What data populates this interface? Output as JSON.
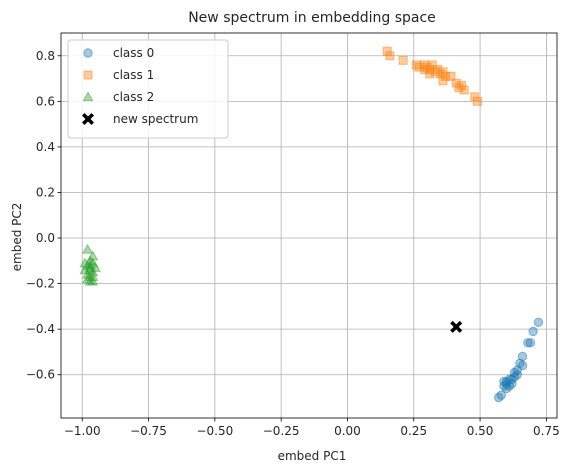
{
  "chart_data": {
    "type": "scatter",
    "title": "New spectrum in embedding space",
    "xlabel": "embed PC1",
    "ylabel": "embed PC2",
    "xlim": [
      -1.08,
      0.79
    ],
    "ylim": [
      -0.79,
      0.9
    ],
    "xticks": [
      -1.0,
      -0.75,
      -0.5,
      -0.25,
      0.0,
      0.25,
      0.5,
      0.75
    ],
    "xtick_labels": [
      "−1.00",
      "−0.75",
      "−0.50",
      "−0.25",
      "0.00",
      "0.25",
      "0.50",
      "0.75"
    ],
    "yticks": [
      -0.6,
      -0.4,
      -0.2,
      0.0,
      0.2,
      0.4,
      0.6,
      0.8
    ],
    "ytick_labels": [
      "−0.6",
      "−0.4",
      "−0.2",
      "0.0",
      "0.2",
      "0.4",
      "0.6",
      "0.8"
    ],
    "grid": true,
    "legend_position": "upper-left",
    "series": [
      {
        "name": "class 0",
        "marker": "circle",
        "color": "#1f77b4",
        "points": [
          [
            0.72,
            -0.37
          ],
          [
            0.7,
            -0.41
          ],
          [
            0.69,
            -0.46
          ],
          [
            0.68,
            -0.46
          ],
          [
            0.66,
            -0.52
          ],
          [
            0.65,
            -0.55
          ],
          [
            0.66,
            -0.56
          ],
          [
            0.64,
            -0.58
          ],
          [
            0.63,
            -0.59
          ],
          [
            0.63,
            -0.61
          ],
          [
            0.62,
            -0.62
          ],
          [
            0.61,
            -0.62
          ],
          [
            0.6,
            -0.63
          ],
          [
            0.6,
            -0.64
          ],
          [
            0.59,
            -0.63
          ],
          [
            0.59,
            -0.65
          ],
          [
            0.6,
            -0.66
          ],
          [
            0.58,
            -0.69
          ],
          [
            0.57,
            -0.7
          ],
          [
            0.64,
            -0.6
          ],
          [
            0.62,
            -0.64
          ],
          [
            0.61,
            -0.65
          ]
        ]
      },
      {
        "name": "class 1",
        "marker": "square",
        "color": "#ff7f0e",
        "points": [
          [
            0.15,
            0.82
          ],
          [
            0.16,
            0.8
          ],
          [
            0.21,
            0.78
          ],
          [
            0.26,
            0.76
          ],
          [
            0.27,
            0.75
          ],
          [
            0.29,
            0.76
          ],
          [
            0.3,
            0.75
          ],
          [
            0.31,
            0.74
          ],
          [
            0.32,
            0.76
          ],
          [
            0.33,
            0.73
          ],
          [
            0.34,
            0.74
          ],
          [
            0.35,
            0.72
          ],
          [
            0.36,
            0.73
          ],
          [
            0.37,
            0.71
          ],
          [
            0.36,
            0.69
          ],
          [
            0.39,
            0.71
          ],
          [
            0.41,
            0.68
          ],
          [
            0.43,
            0.67
          ],
          [
            0.44,
            0.65
          ],
          [
            0.42,
            0.66
          ],
          [
            0.48,
            0.62
          ],
          [
            0.49,
            0.6
          ],
          [
            0.31,
            0.72
          ],
          [
            0.29,
            0.74
          ]
        ]
      },
      {
        "name": "class 2",
        "marker": "triangle",
        "color": "#2ca02c",
        "points": [
          [
            -0.98,
            -0.05
          ],
          [
            -0.96,
            -0.08
          ],
          [
            -0.97,
            -0.1
          ],
          [
            -0.96,
            -0.11
          ],
          [
            -0.98,
            -0.12
          ],
          [
            -0.97,
            -0.13
          ],
          [
            -0.95,
            -0.13
          ],
          [
            -0.99,
            -0.14
          ],
          [
            -0.97,
            -0.14
          ],
          [
            -0.96,
            -0.15
          ],
          [
            -0.98,
            -0.16
          ],
          [
            -0.97,
            -0.17
          ],
          [
            -0.96,
            -0.17
          ],
          [
            -0.98,
            -0.18
          ],
          [
            -0.97,
            -0.19
          ],
          [
            -0.96,
            -0.19
          ],
          [
            -0.97,
            -0.12
          ],
          [
            -0.99,
            -0.11
          ]
        ]
      },
      {
        "name": "new spectrum",
        "marker": "x-filled",
        "color": "#000000",
        "points": [
          [
            0.41,
            -0.39
          ]
        ]
      }
    ]
  }
}
